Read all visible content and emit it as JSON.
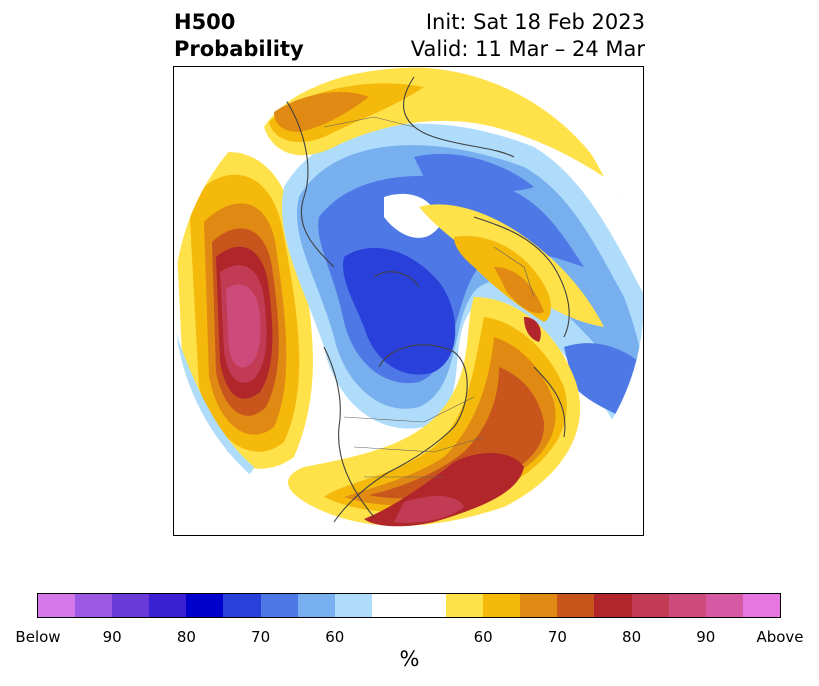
{
  "title": {
    "left_line1": "H500",
    "left_line2": "Probability",
    "right_line1": "Init: Sat 18 Feb 2023",
    "right_line2": "Valid: 11 Mar – 24 Mar"
  },
  "colorbar": {
    "colors": [
      "#d579ea",
      "#9b58e3",
      "#6a3ad9",
      "#3a1fd3",
      "#0000cc",
      "#2a40db",
      "#4d78e6",
      "#78afef",
      "#aedcfa",
      "#ffffff",
      "#ffe14a",
      "#f4b90b",
      "#e08a13",
      "#c8561c",
      "#b0262a",
      "#c23b55",
      "#cc4b7a",
      "#d65aa3",
      "#e677e0"
    ],
    "tick_labels": [
      "Below",
      "90",
      "80",
      "70",
      "60",
      "60",
      "70",
      "80",
      "90",
      "Above"
    ],
    "unit": "%"
  },
  "map": {
    "projection": "polar-stereographic",
    "variable": "500 hPa height anomaly probability"
  }
}
